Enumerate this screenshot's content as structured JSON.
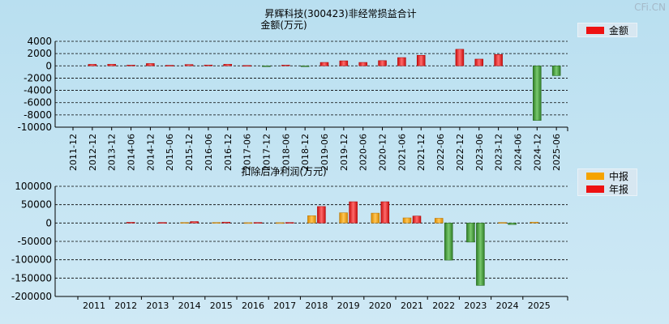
{
  "watermark": "CFi.CN",
  "chart_data": [
    {
      "type": "bar",
      "title": "昇辉科技(300423)非经常损益合计",
      "subtitle": "金额(万元)",
      "legend": [
        {
          "name": "金额",
          "color": "#ee1111"
        }
      ],
      "y_ticks": [
        "4000",
        "2000",
        "0",
        "-2000",
        "-4000",
        "-6000",
        "-8000",
        "-10000"
      ],
      "ylim": [
        -10000,
        4000
      ],
      "categories": [
        "2011-12",
        "2012-12",
        "2013-12",
        "2014-06",
        "2014-12",
        "2015-06",
        "2015-12",
        "2016-06",
        "2016-12",
        "2017-06",
        "2017-12",
        "2018-06",
        "2018-12",
        "2019-06",
        "2019-12",
        "2020-06",
        "2020-12",
        "2021-06",
        "2021-12",
        "2022-06",
        "2022-12",
        "2023-06",
        "2023-12",
        "2024-06",
        "2024-12",
        "2025-06"
      ],
      "series": [
        {
          "name": "金额",
          "values": [
            0,
            250,
            260,
            120,
            380,
            90,
            220,
            140,
            260,
            60,
            -80,
            120,
            -80,
            560,
            820,
            560,
            850,
            1350,
            1720,
            0,
            2700,
            1100,
            1850,
            0,
            -8900,
            -1600
          ]
        }
      ]
    },
    {
      "type": "bar",
      "title": "扣除后净利润(万元)",
      "legend": [
        {
          "name": "中报",
          "color": "#f5a300"
        },
        {
          "name": "年报",
          "color": "#ee1111"
        }
      ],
      "y_ticks": [
        "100000",
        "50000",
        "0",
        "-50000",
        "-100000",
        "-150000",
        "-200000"
      ],
      "ylim": [
        -200000,
        100000
      ],
      "categories": [
        "2011",
        "2012",
        "2013",
        "2014",
        "2015",
        "2016",
        "2017",
        "2018",
        "2019",
        "2020",
        "2021",
        "2022",
        "2023",
        "2024",
        "2025"
      ],
      "series": [
        {
          "name": "中报",
          "values": [
            0,
            0,
            0,
            1500,
            1500,
            1000,
            1000,
            20000,
            28000,
            27000,
            14000,
            13000,
            -52000,
            1500,
            2500
          ]
        },
        {
          "name": "年报",
          "values": [
            0,
            2000,
            1500,
            4000,
            2500,
            1500,
            1500,
            45000,
            58000,
            58000,
            19000,
            -101000,
            -170000,
            -4000,
            null
          ]
        }
      ]
    }
  ]
}
